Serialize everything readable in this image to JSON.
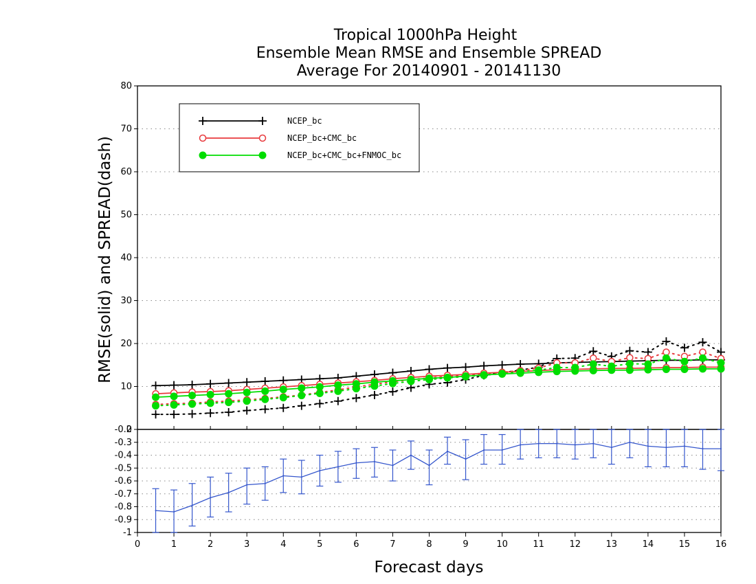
{
  "chart_data": {
    "type": "line",
    "title": [
      "Tropical 1000hPa Height",
      "Ensemble Mean RMSE and Ensemble SPREAD",
      "Average For 20140901 - 20141130"
    ],
    "xlabel": "Forecast days",
    "ylabel": "RMSE(solid) and SPREAD(dash)",
    "xlim": [
      0,
      16
    ],
    "x_ticks": [
      "0",
      "1",
      "2",
      "3",
      "4",
      "5",
      "6",
      "7",
      "8",
      "9",
      "10",
      "11",
      "12",
      "13",
      "14",
      "15",
      "16"
    ],
    "x": [
      0.5,
      1,
      1.5,
      2,
      2.5,
      3,
      3.5,
      4,
      4.5,
      5,
      5.5,
      6,
      6.5,
      7,
      7.5,
      8,
      8.5,
      9,
      9.5,
      10,
      10.5,
      11,
      11.5,
      12,
      12.5,
      13,
      13.5,
      14,
      14.5,
      15,
      15.5,
      16
    ],
    "upper_panel": {
      "ylim": [
        0,
        80
      ],
      "y_ticks": [
        "0",
        "10",
        "20",
        "30",
        "40",
        "50",
        "60",
        "70",
        "80"
      ],
      "grid": true,
      "legend_position": "top-left",
      "series": [
        {
          "name": "NCEP_bc",
          "color": "#000000",
          "marker": "plus",
          "rmse": [
            10.2,
            10.3,
            10.4,
            10.6,
            10.8,
            11.0,
            11.2,
            11.4,
            11.6,
            11.8,
            12.0,
            12.4,
            12.8,
            13.2,
            13.6,
            14.0,
            14.3,
            14.5,
            14.8,
            15.0,
            15.2,
            15.3,
            15.5,
            15.6,
            15.7,
            15.8,
            15.9,
            16.0,
            16.1,
            16.1,
            16.2,
            16.2
          ],
          "spread": [
            3.5,
            3.5,
            3.6,
            3.8,
            4.0,
            4.4,
            4.7,
            5.0,
            5.5,
            6.0,
            6.6,
            7.3,
            8.0,
            8.8,
            9.7,
            10.5,
            10.9,
            11.6,
            12.6,
            13.2,
            13.8,
            14.5,
            16.5,
            16.6,
            18.2,
            17.0,
            18.3,
            18.0,
            20.5,
            19.0,
            20.3,
            18.0
          ]
        },
        {
          "name": "NCEP_bc+CMC_bc",
          "color": "#e8393c",
          "marker": "open-circle",
          "rmse": [
            8.3,
            8.5,
            8.7,
            8.8,
            9.0,
            9.3,
            9.6,
            9.9,
            10.2,
            10.5,
            10.8,
            11.1,
            11.4,
            11.8,
            12.1,
            12.4,
            12.6,
            12.8,
            13.1,
            13.3,
            13.5,
            13.7,
            13.9,
            14.0,
            14.1,
            14.2,
            14.2,
            14.3,
            14.4,
            14.4,
            14.5,
            14.5
          ],
          "spread": [
            5.8,
            6.0,
            6.1,
            6.4,
            6.6,
            6.9,
            7.2,
            7.6,
            8.0,
            8.6,
            9.2,
            9.9,
            10.5,
            11.1,
            11.6,
            12.0,
            12.3,
            12.6,
            13.0,
            13.3,
            13.7,
            14.3,
            15.5,
            15.5,
            16.6,
            15.8,
            16.7,
            16.5,
            18.0,
            17.0,
            18.0,
            16.5
          ]
        },
        {
          "name": "NCEP_bc+CMC_bc+FNMOC_bc",
          "color": "#00dd00",
          "marker": "filled-circle",
          "rmse": [
            7.5,
            7.7,
            7.9,
            8.1,
            8.3,
            8.6,
            8.9,
            9.3,
            9.6,
            9.9,
            10.3,
            10.6,
            11.0,
            11.3,
            11.6,
            11.9,
            12.1,
            12.4,
            12.7,
            12.9,
            13.1,
            13.3,
            13.5,
            13.6,
            13.7,
            13.8,
            13.8,
            13.9,
            14.0,
            14.0,
            14.1,
            14.1
          ],
          "spread": [
            5.5,
            5.7,
            5.9,
            6.1,
            6.3,
            6.6,
            7.0,
            7.4,
            7.9,
            8.4,
            8.9,
            9.5,
            10.1,
            10.7,
            11.2,
            11.6,
            12.0,
            12.3,
            12.6,
            13.0,
            13.4,
            13.8,
            14.4,
            14.4,
            15.2,
            14.7,
            15.3,
            15.2,
            16.6,
            15.8,
            16.6,
            15.5
          ]
        }
      ]
    },
    "lower_panel": {
      "ylim": [
        -1.0,
        -0.2
      ],
      "y_ticks": [
        "-1",
        "-0.9",
        "-0.8",
        "-0.7",
        "-0.6",
        "-0.5",
        "-0.4",
        "-0.3",
        "-0.2"
      ],
      "grid": true,
      "color": "#3355cc",
      "values": [
        -0.83,
        -0.84,
        -0.79,
        -0.73,
        -0.69,
        -0.63,
        -0.62,
        -0.56,
        -0.57,
        -0.52,
        -0.49,
        -0.46,
        -0.45,
        -0.48,
        -0.4,
        -0.48,
        -0.37,
        -0.43,
        -0.36,
        -0.36,
        -0.32,
        -0.31,
        -0.31,
        -0.32,
        -0.31,
        -0.34,
        -0.3,
        -0.33,
        -0.34,
        -0.33,
        -0.35,
        -0.35
      ],
      "error_low": [
        -1.0,
        -1.0,
        -0.95,
        -0.88,
        -0.84,
        -0.78,
        -0.75,
        -0.69,
        -0.7,
        -0.64,
        -0.61,
        -0.58,
        -0.57,
        -0.6,
        -0.51,
        -0.63,
        -0.47,
        -0.59,
        -0.47,
        -0.47,
        -0.43,
        -0.42,
        -0.42,
        -0.43,
        -0.42,
        -0.47,
        -0.42,
        -0.49,
        -0.49,
        -0.49,
        -0.51,
        -0.52
      ],
      "error_high": [
        -0.66,
        -0.67,
        -0.62,
        -0.57,
        -0.54,
        -0.5,
        -0.49,
        -0.43,
        -0.44,
        -0.4,
        -0.37,
        -0.35,
        -0.34,
        -0.36,
        -0.29,
        -0.36,
        -0.26,
        -0.28,
        -0.24,
        -0.24,
        -0.2,
        -0.18,
        -0.18,
        -0.19,
        -0.18,
        -0.19,
        -0.17,
        -0.18,
        -0.19,
        -0.18,
        -0.18,
        -0.18
      ]
    }
  }
}
